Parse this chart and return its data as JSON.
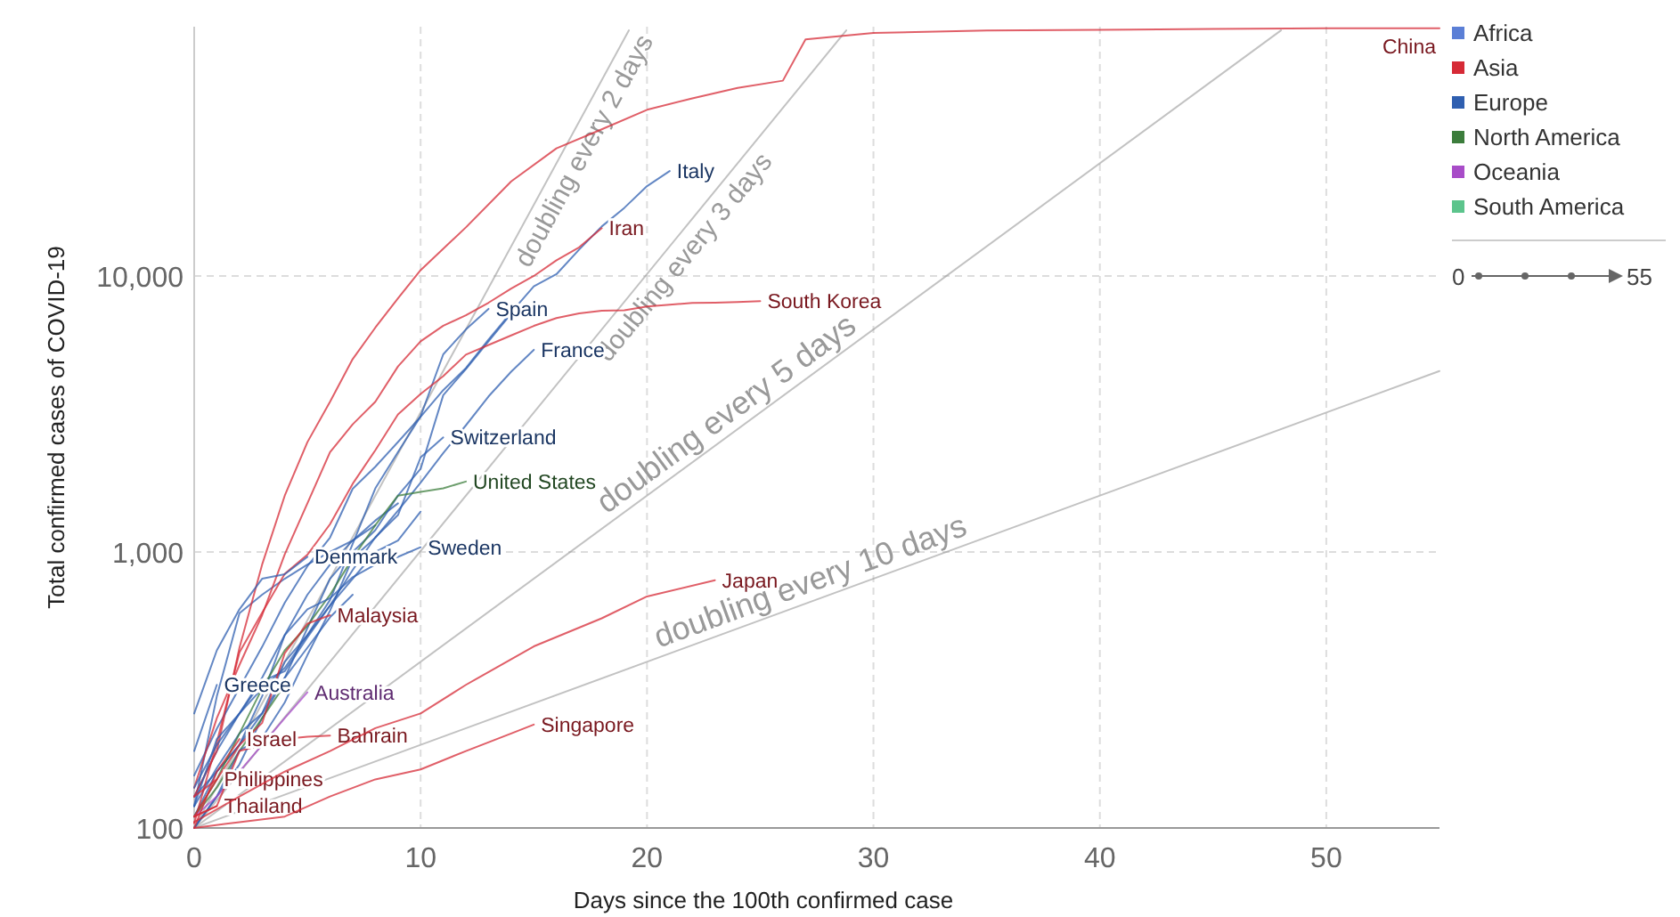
{
  "chart_data": {
    "type": "line",
    "xlabel": "Days since the 100th confirmed case",
    "ylabel": "Total confirmed cases of COVID-19",
    "xlim": [
      0,
      55
    ],
    "xticks": [
      0,
      10,
      20,
      30,
      40,
      50
    ],
    "ylim": [
      100,
      80000
    ],
    "yticks": [
      {
        "value": 100,
        "label": "100"
      },
      {
        "value": 1000,
        "label": "1,000"
      },
      {
        "value": 10000,
        "label": "10,000"
      }
    ],
    "log": "y",
    "grid": true,
    "legend": "top right",
    "annotations": [
      "0",
      "55"
    ],
    "series": [
      {
        "name": "Africa",
        "color": "#5b7fd6"
      },
      {
        "name": "Asia",
        "color": "#d62a36"
      },
      {
        "name": "Europe",
        "color": "#2f5fb0"
      },
      {
        "name": "North America",
        "color": "#3c7d3c"
      },
      {
        "name": "Oceania",
        "color": "#a84cc8"
      },
      {
        "name": "South America",
        "color": "#5cc48c"
      },
      {
        "name": "doubling every 2 days",
        "color": "#999999",
        "x": [
          0,
          19.2
        ],
        "values": [
          100,
          77600
        ]
      },
      {
        "name": "doubling every 3 days",
        "color": "#999999",
        "x": [
          0,
          28.8
        ],
        "values": [
          100,
          77600
        ]
      },
      {
        "name": "doubling every 5 days",
        "color": "#999999",
        "x": [
          0,
          48
        ],
        "values": [
          100,
          77600
        ]
      },
      {
        "name": "doubling every 10 days",
        "color": "#999999",
        "x": [
          0,
          55
        ],
        "values": [
          100,
          4525
        ]
      },
      {
        "color": "#2f5fb0",
        "x": [
          0,
          1,
          2,
          3,
          4,
          5,
          6,
          7,
          8,
          9,
          10,
          11,
          12,
          13,
          14
        ],
        "values": [
          130,
          160,
          200,
          260,
          350,
          530,
          800,
          1000,
          1200,
          1600,
          2000,
          3700,
          4600,
          5800,
          7300
        ]
      },
      {
        "color": "#2f5fb0",
        "x": [
          0,
          1,
          2,
          3,
          4,
          5,
          6,
          7,
          8,
          9,
          10
        ],
        "values": [
          130,
          190,
          260,
          320,
          380,
          500,
          640,
          800,
          1000,
          1100,
          1400
        ]
      },
      {
        "color": "#2f5fb0",
        "x": [
          0,
          1,
          2,
          3,
          4,
          5,
          6,
          7,
          8,
          9
        ],
        "values": [
          110,
          160,
          200,
          300,
          500,
          700,
          900,
          1100,
          1300,
          1500
        ]
      },
      {
        "color": "#2f5fb0",
        "x": [
          0,
          1,
          2,
          3,
          4,
          5,
          6,
          7,
          8
        ],
        "values": [
          120,
          300,
          600,
          700,
          800,
          900,
          1000,
          1100,
          1250
        ]
      },
      {
        "color": "#2f5fb0",
        "x": [
          0,
          1,
          2,
          3,
          4,
          5,
          6,
          7
        ],
        "values": [
          100,
          130,
          170,
          250,
          350,
          450,
          580,
          700
        ]
      },
      {
        "color": "#3c7d3c",
        "x": [
          0,
          1,
          2,
          3,
          4
        ],
        "values": [
          110,
          140,
          190,
          250,
          330
        ]
      },
      {
        "name": "China",
        "color": "#d62a36",
        "x": [
          0,
          1,
          2,
          3,
          4,
          5,
          6,
          7,
          8,
          9,
          10,
          12,
          14,
          16,
          18,
          20,
          22,
          24,
          26,
          27,
          30,
          35,
          40,
          45,
          50,
          55
        ],
        "values": [
          130,
          190,
          450,
          900,
          1600,
          2500,
          3500,
          5000,
          6500,
          8300,
          10500,
          15000,
          22000,
          29000,
          34000,
          40000,
          44000,
          48000,
          51000,
          72000,
          76000,
          77500,
          78000,
          78500,
          79000,
          79000
        ]
      },
      {
        "name": "Italy",
        "color": "#2f5fb0",
        "x": [
          0,
          1,
          2,
          3,
          4,
          5,
          6,
          7,
          8,
          9,
          10,
          11,
          12,
          13,
          14,
          15,
          16,
          17,
          18,
          19,
          20,
          21
        ],
        "values": [
          155,
          229,
          322,
          453,
          655,
          888,
          1128,
          1694,
          2036,
          2502,
          3089,
          3858,
          4636,
          5883,
          7375,
          9172,
          10149,
          12462,
          15113,
          17660,
          21157,
          24000
        ]
      },
      {
        "name": "Iran",
        "color": "#d62a36",
        "x": [
          0,
          1,
          2,
          3,
          4,
          5,
          6,
          7,
          8,
          9,
          10,
          11,
          12,
          13,
          14,
          15,
          16,
          17,
          18
        ],
        "values": [
          140,
          250,
          390,
          590,
          980,
          1500,
          2300,
          2900,
          3500,
          4700,
          5800,
          6600,
          7200,
          8000,
          9000,
          10000,
          11400,
          12700,
          14900
        ]
      },
      {
        "name": "Spain",
        "color": "#2f5fb0",
        "x": [
          0,
          1,
          2,
          3,
          4,
          5,
          6,
          7,
          8,
          9,
          10,
          11,
          12,
          13
        ],
        "values": [
          120,
          165,
          220,
          260,
          400,
          500,
          670,
          1070,
          1700,
          2300,
          3100,
          5200,
          6400,
          7600
        ]
      },
      {
        "name": "South Korea",
        "color": "#d62a36",
        "x": [
          0,
          1,
          2,
          3,
          4,
          5,
          6,
          7,
          8,
          9,
          10,
          11,
          12,
          13,
          14,
          15,
          16,
          17,
          18,
          19,
          20,
          21,
          22,
          23,
          24,
          25
        ],
        "values": [
          104,
          204,
          433,
          602,
          833,
          977,
          1261,
          1766,
          2337,
          3150,
          3736,
          4335,
          5186,
          5621,
          6088,
          6593,
          7041,
          7313,
          7478,
          7513,
          7755,
          7869,
          7979,
          8000,
          8050,
          8100
        ]
      },
      {
        "name": "France",
        "color": "#2f5fb0",
        "x": [
          0,
          1,
          2,
          3,
          4,
          5,
          6,
          7,
          8,
          9,
          10,
          11,
          12,
          13,
          14,
          15
        ],
        "values": [
          100,
          130,
          191,
          212,
          285,
          423,
          613,
          949,
          1126,
          1412,
          1784,
          2281,
          2876,
          3661,
          4499,
          5400
        ]
      },
      {
        "name": "Switzerland",
        "color": "#2f5fb0",
        "x": [
          0,
          1,
          2,
          3,
          4,
          5,
          6,
          7,
          8,
          9,
          10,
          11
        ],
        "values": [
          120,
          210,
          260,
          340,
          370,
          490,
          640,
          860,
          1130,
          1360,
          2200,
          2600
        ]
      },
      {
        "name": "United States",
        "color": "#3c7d3c",
        "x": [
          0,
          1,
          2,
          3,
          4,
          5,
          6,
          7,
          8,
          9,
          10,
          11,
          12
        ],
        "values": [
          110,
          150,
          220,
          320,
          440,
          540,
          700,
          950,
          1250,
          1600,
          1650,
          1700,
          1800
        ]
      },
      {
        "name": "Sweden",
        "color": "#2f5fb0",
        "x": [
          0,
          1,
          2,
          3,
          4,
          5,
          6,
          7,
          8,
          9,
          10
        ],
        "values": [
          140,
          200,
          260,
          350,
          500,
          620,
          680,
          810,
          900,
          960,
          1040
        ]
      },
      {
        "name": "Denmark",
        "color": "#2f5fb0",
        "x": [
          0,
          1,
          2,
          3,
          4,
          5
        ],
        "values": [
          260,
          440,
          620,
          800,
          830,
          960
        ]
      },
      {
        "name": "Malaysia",
        "color": "#d62a36",
        "x": [
          0,
          1,
          2,
          3,
          4,
          5,
          6
        ],
        "values": [
          130,
          150,
          200,
          240,
          430,
          550,
          590
        ]
      },
      {
        "name": "Greece",
        "color": "#2f5fb0",
        "x": [
          0,
          1
        ],
        "values": [
          190,
          330
        ]
      },
      {
        "name": "Australia",
        "color": "#a84cc8",
        "x": [
          0,
          1,
          2,
          3,
          4,
          5
        ],
        "values": [
          110,
          130,
          160,
          200,
          250,
          310
        ]
      },
      {
        "name": "Bahrain",
        "color": "#d62a36",
        "x": [
          0,
          1,
          2,
          3,
          4,
          5,
          6
        ],
        "values": [
          110,
          120,
          190,
          200,
          210,
          214,
          216
        ]
      },
      {
        "name": "Israel",
        "color": "#d62a36",
        "x": [
          0,
          1,
          2
        ],
        "values": [
          100,
          160,
          210
        ]
      },
      {
        "name": "Philippines",
        "color": "#d62a36",
        "x": [
          0,
          1
        ],
        "values": [
          110,
          150
        ]
      },
      {
        "name": "Thailand",
        "color": "#d62a36",
        "x": [
          0,
          1
        ],
        "values": [
          110,
          120
        ]
      },
      {
        "name": "Singapore",
        "color": "#d62a36",
        "x": [
          0,
          2,
          4,
          6,
          8,
          10,
          12,
          14,
          15
        ],
        "values": [
          100,
          105,
          110,
          130,
          150,
          163,
          190,
          220,
          237
        ]
      },
      {
        "name": "Japan",
        "color": "#d62a36",
        "x": [
          0,
          2,
          4,
          6,
          8,
          10,
          12,
          15,
          18,
          20,
          23
        ],
        "values": [
          105,
          130,
          160,
          190,
          230,
          260,
          330,
          455,
          575,
          690,
          790
        ]
      }
    ]
  }
}
